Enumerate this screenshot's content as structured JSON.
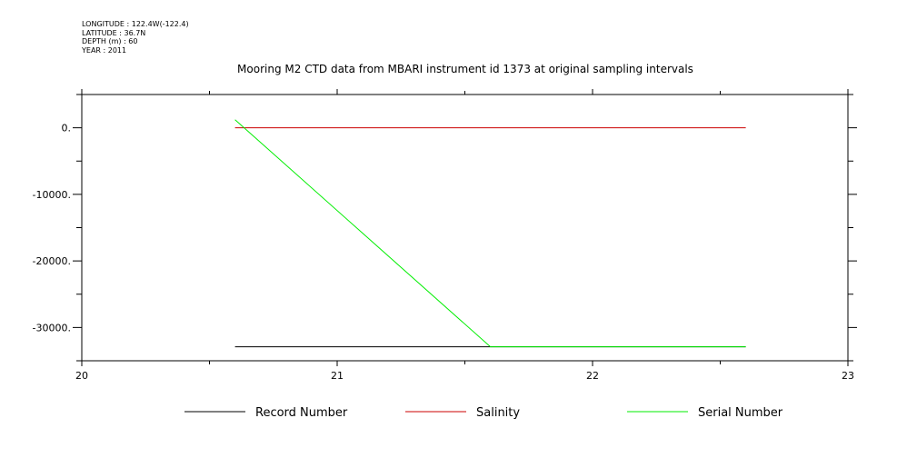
{
  "header": {
    "longitude": "LONGITUDE : 122.4W(-122.4)",
    "latitude": "LATITUDE : 36.7N",
    "depth": "DEPTH (m) : 60",
    "year": "YEAR : 2011"
  },
  "chart_data": {
    "type": "line",
    "title": "Mooring M2 CTD data from MBARI instrument id 1373 at original sampling intervals",
    "xlabel": "",
    "ylabel": "",
    "xlim": [
      20,
      23
    ],
    "ylim": [
      -35000,
      5000
    ],
    "x_ticks": [
      20,
      21,
      22,
      23
    ],
    "x_tick_labels": [
      "20",
      "21",
      "22",
      "23"
    ],
    "y_ticks": [
      0,
      -10000,
      -20000,
      -30000
    ],
    "y_tick_labels": [
      "0.",
      "-10000.",
      "-20000.",
      "-30000."
    ],
    "grid": false,
    "legend_position": "bottom",
    "series": [
      {
        "name": "Record Number",
        "color": "#000000",
        "x": [
          20.6,
          21.6,
          22.6
        ],
        "y": [
          -32900,
          -32900,
          -32900
        ]
      },
      {
        "name": "Salinity",
        "color": "#cc0000",
        "x": [
          20.6,
          21.6,
          22.6
        ],
        "y": [
          0,
          0,
          0
        ]
      },
      {
        "name": "Serial Number",
        "color": "#00ee00",
        "x": [
          20.6,
          21.6,
          22.6
        ],
        "y": [
          1200,
          -32900,
          -32900
        ]
      }
    ]
  }
}
